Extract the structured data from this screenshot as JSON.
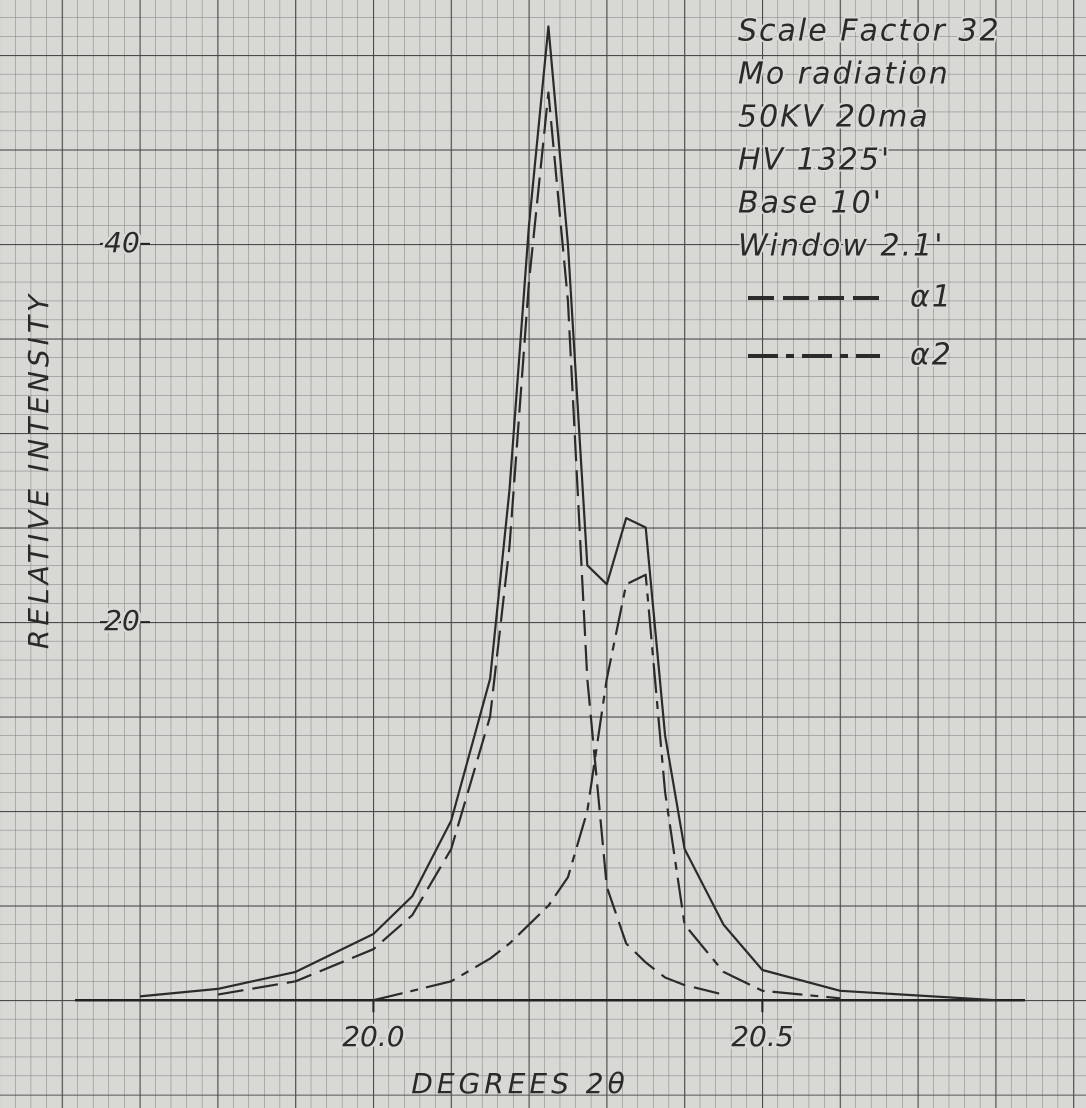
{
  "chart_data": {
    "type": "line",
    "annotations": [
      "Scale Factor 32",
      "Mo radiation",
      "50KV 20ma",
      "HV 1325'",
      "Base 10'",
      "Window 2.1'"
    ],
    "xlabel": "DEGREES 2θ",
    "ylabel": "RELATIVE INTENSITY",
    "x": [
      19.7,
      19.8,
      19.9,
      20.0,
      20.05,
      20.1,
      20.15,
      20.175,
      20.2,
      20.225,
      20.25,
      20.275,
      20.3,
      20.325,
      20.35,
      20.375,
      20.4,
      20.45,
      20.5,
      20.6,
      20.8
    ],
    "series": [
      {
        "color": "#2b2b2b",
        "linestyle": "solid",
        "values": [
          0.2,
          0.6,
          1.5,
          3.5,
          5.5,
          9.5,
          17,
          27,
          41,
          51.5,
          40,
          23,
          22,
          25.5,
          25,
          14,
          8,
          4,
          1.6,
          0.5,
          0
        ]
      },
      {
        "name": "α1",
        "color": "#2b2b2b",
        "linestyle": "dashed",
        "values": [
          null,
          0.3,
          1,
          2.7,
          4.5,
          8,
          15,
          24,
          38,
          48,
          37,
          17,
          6,
          3,
          2,
          1.2,
          0.8,
          0.3,
          null,
          null,
          null
        ]
      },
      {
        "name": "α2",
        "color": "#2b2b2b",
        "linestyle": "dashdot",
        "values": [
          null,
          null,
          null,
          0,
          0.5,
          1,
          2.2,
          3,
          4,
          5,
          6.5,
          10,
          17,
          22,
          22.5,
          11,
          4,
          1.5,
          0.5,
          0.1,
          null
        ]
      }
    ],
    "xlim": [
      19.52,
      20.916
    ],
    "ylim": [
      -5.7,
      52.9
    ],
    "xticks": [
      {
        "value": 20,
        "label": "20.0"
      },
      {
        "value": 20.5,
        "label": "20.5"
      }
    ],
    "yticks": [
      20,
      40
    ]
  }
}
